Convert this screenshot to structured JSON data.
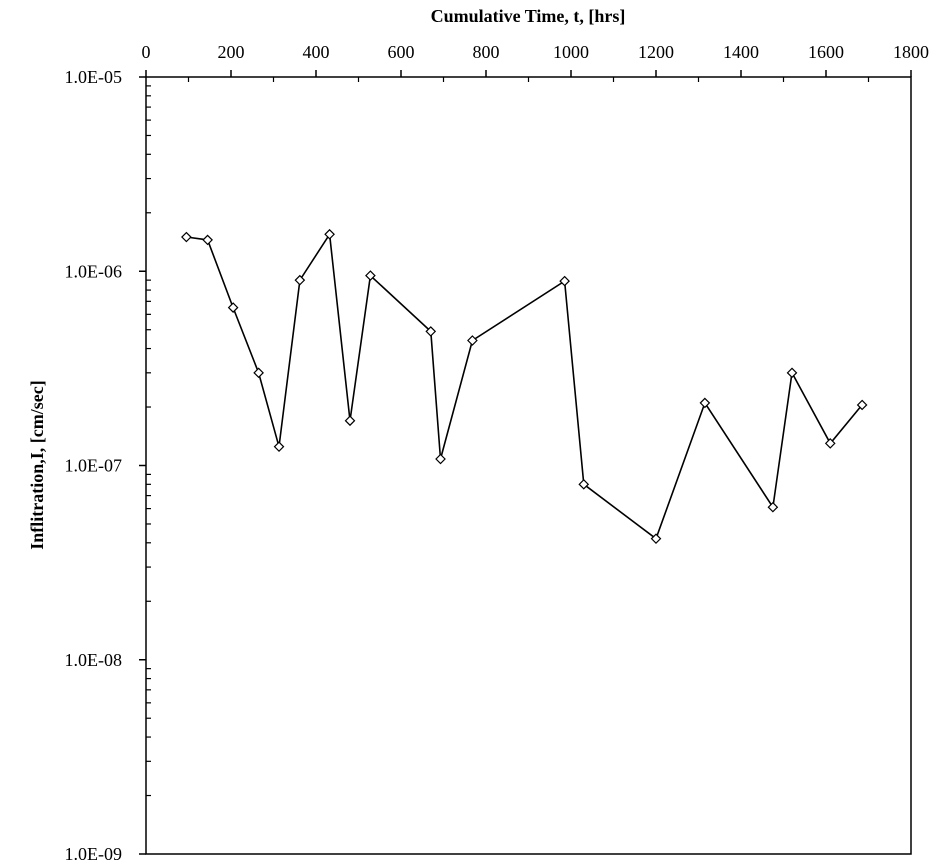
{
  "chart_data": {
    "type": "scatter",
    "xlabel": "Cumulative Time, t, [hrs]",
    "ylabel": "Inflitration,I, [cm/sec]",
    "xlim": [
      0,
      1800
    ],
    "ylim": [
      1e-09,
      1e-05
    ],
    "y_scale": "log",
    "x_axis_position": "top",
    "grid": false,
    "legend": "none",
    "x_ticks": [
      0,
      200,
      400,
      600,
      800,
      1000,
      1200,
      1400,
      1600,
      1800
    ],
    "x_tick_labels": [
      "0",
      "200",
      "400",
      "600",
      "800",
      "1000",
      "1200",
      "1400",
      "1600",
      "1800"
    ],
    "y_ticks": [
      1e-05,
      1e-06,
      1e-07,
      1e-08,
      1e-09
    ],
    "y_tick_labels": [
      "1.0E-05",
      "1.0E-06",
      "1.0E-07",
      "1.0E-08",
      "1.0E-09"
    ],
    "line_color": "#000000",
    "marker": "diamond-open",
    "series": [
      {
        "x": [
          95,
          145,
          205,
          265,
          313,
          362,
          432,
          480,
          528,
          670,
          693,
          768,
          985,
          1030,
          1200,
          1315,
          1475,
          1520,
          1610,
          1685
        ],
        "y": [
          1.5e-06,
          1.45e-06,
          6.5e-07,
          3e-07,
          1.25e-07,
          9e-07,
          1.55e-06,
          1.7e-07,
          9.5e-07,
          4.9e-07,
          1.08e-07,
          4.4e-07,
          8.9e-07,
          8e-08,
          4.2e-08,
          2.1e-07,
          6.1e-08,
          3e-07,
          1.3e-07,
          2.05e-07
        ]
      }
    ]
  }
}
